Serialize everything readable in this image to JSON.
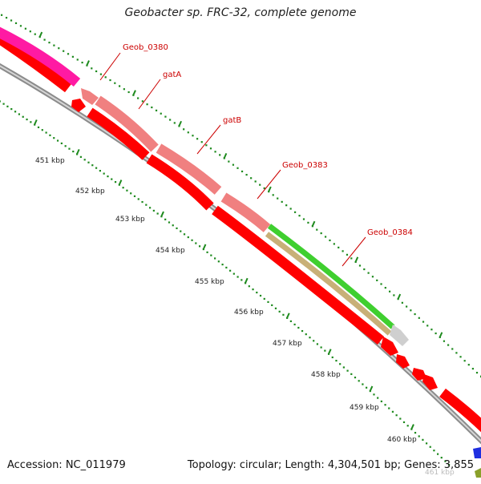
{
  "map": {
    "title": "Geobacter sp. FRC-32, complete genome",
    "accession": "Accession: NC_011979",
    "summary": "Topology: circular; Length: 4,304,501 bp; Genes: 3,855"
  },
  "kbp_labels": [
    "451 kbp",
    "452 kbp",
    "453 kbp",
    "454 kbp",
    "455 kbp",
    "456 kbp",
    "457 kbp",
    "458 kbp",
    "459 kbp",
    "460 kbp",
    "461 kbp"
  ],
  "gene_labels": [
    "Geob_0380",
    "gatA",
    "gatB",
    "Geob_0383",
    "Geob_0384"
  ],
  "colors": {
    "cds_forward": "#f08080",
    "cds_reverse": "#ff0000",
    "pink_feature": "#ff1aa3",
    "green_feature": "#3fcf2f",
    "khaki_feature": "#c8b078",
    "grey_feature": "#cfcfcf",
    "blue_feature": "#1f2fe0",
    "backbone": "#8c8c8c",
    "dots": "#1e8a1e",
    "label_red": "#cc0000"
  }
}
